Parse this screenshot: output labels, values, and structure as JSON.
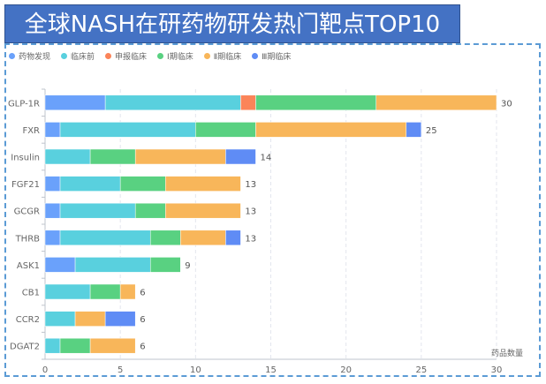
{
  "title": "全球NASH在研药物研发热门靶点TOP10",
  "chart_data": {
    "type": "bar",
    "orientation": "horizontal",
    "stacked": true,
    "title": "全球NASH在研药物研发热门靶点TOP10",
    "xlabel": "药品数量",
    "ylabel": "",
    "xlim": [
      0,
      30
    ],
    "x_ticks": [
      0,
      5,
      10,
      15,
      20,
      25,
      30
    ],
    "grid": true,
    "legend_position": "top-left",
    "categories": [
      "GLP-1R",
      "FXR",
      "Insulin",
      "FGF21",
      "GCGR",
      "THRB",
      "ASK1",
      "CB1",
      "CCR2",
      "DGAT2"
    ],
    "series": [
      {
        "name": "药物发现",
        "color": "#6aa1fb",
        "values": [
          4,
          1,
          0,
          1,
          1,
          1,
          2,
          0,
          0,
          0
        ]
      },
      {
        "name": "临床前",
        "color": "#59d0de",
        "values": [
          9,
          9,
          3,
          4,
          5,
          6,
          5,
          3,
          2,
          1
        ]
      },
      {
        "name": "申报临床",
        "color": "#fb8459",
        "values": [
          1,
          0,
          0,
          0,
          0,
          0,
          0,
          0,
          0,
          0
        ]
      },
      {
        "name": "Ⅰ期临床",
        "color": "#59d181",
        "values": [
          8,
          4,
          3,
          3,
          2,
          2,
          2,
          2,
          0,
          2
        ]
      },
      {
        "name": "Ⅱ期临床",
        "color": "#f8b65a",
        "values": [
          8,
          10,
          6,
          5,
          5,
          3,
          0,
          1,
          2,
          3
        ]
      },
      {
        "name": "Ⅲ期临床",
        "color": "#5f8cf5",
        "values": [
          0,
          1,
          2,
          0,
          0,
          1,
          0,
          0,
          2,
          0
        ]
      }
    ],
    "totals": [
      30,
      25,
      14,
      13,
      13,
      13,
      9,
      6,
      6,
      6
    ]
  }
}
